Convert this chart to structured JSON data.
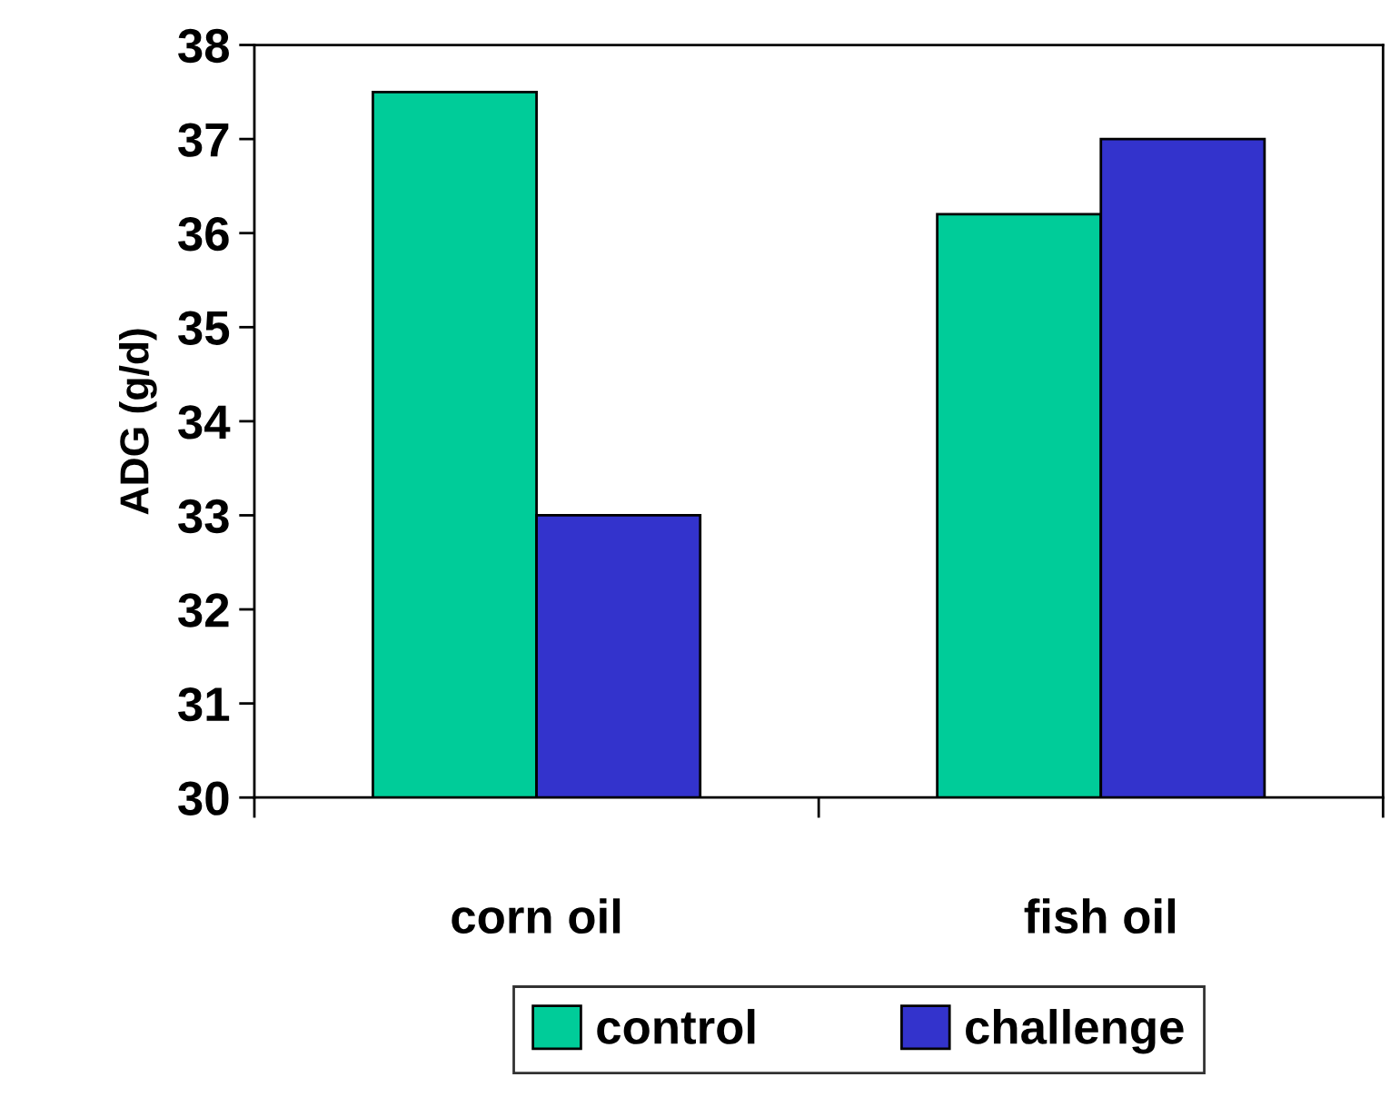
{
  "chart_data": {
    "type": "bar",
    "ylabel": "ADG (g/d)",
    "categories": [
      "corn oil",
      "fish oil"
    ],
    "series": [
      {
        "name": "control",
        "color": "#00cc99",
        "values": [
          37.5,
          36.2
        ]
      },
      {
        "name": "challenge",
        "color": "#3333cc",
        "values": [
          33.0,
          37.0
        ]
      }
    ],
    "ylim": [
      30,
      38
    ],
    "yticks": [
      30,
      31,
      32,
      33,
      34,
      35,
      36,
      37,
      38
    ],
    "grid": false,
    "legend": "bottom"
  }
}
